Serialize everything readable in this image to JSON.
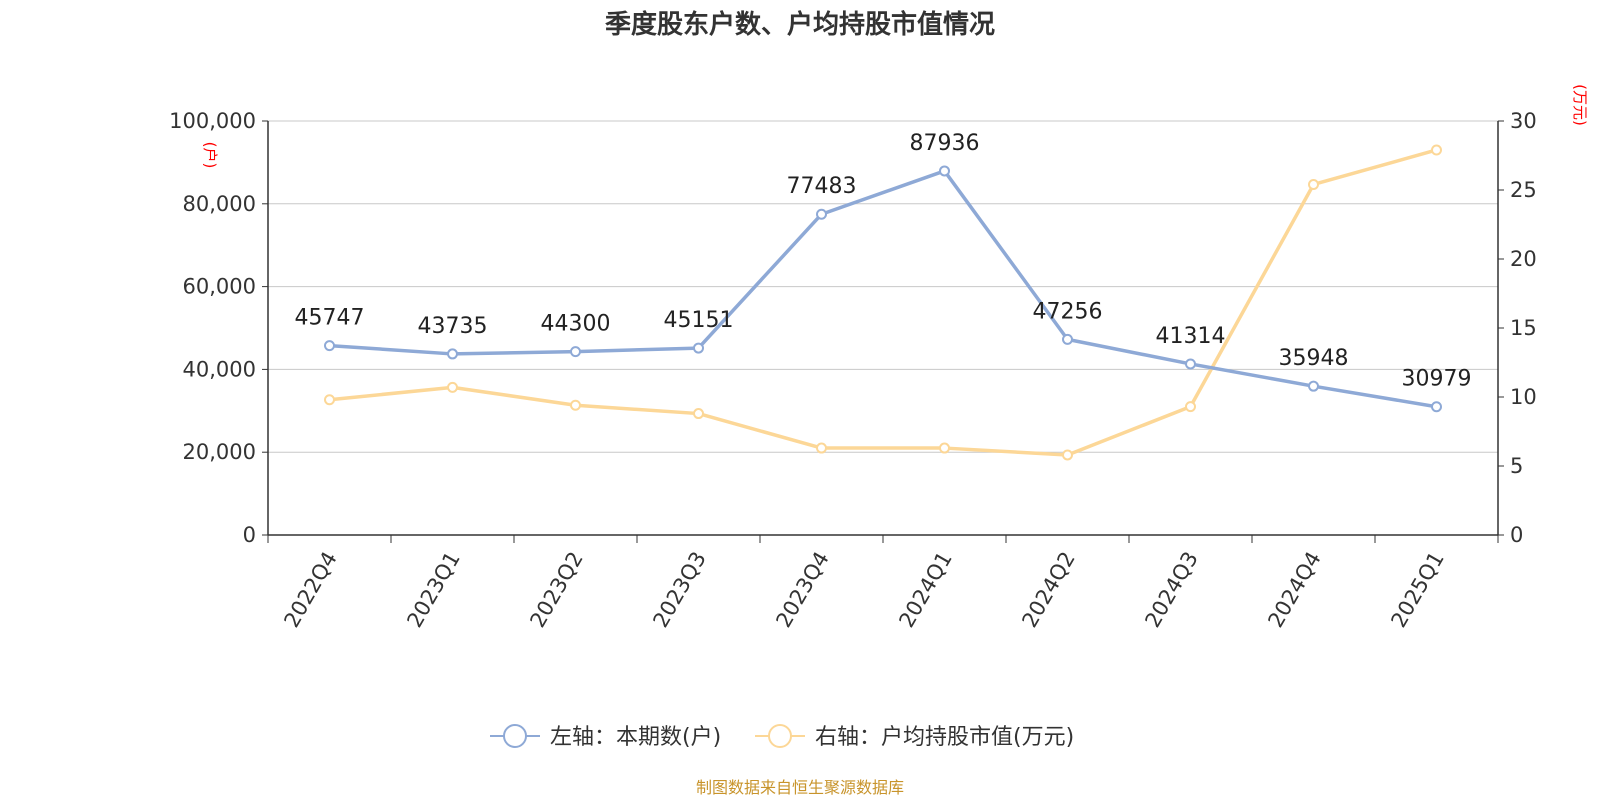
{
  "chart_data": {
    "type": "line",
    "title": "季度股东户数、户均持股市值情况",
    "categories": [
      "2022Q4",
      "2023Q1",
      "2023Q2",
      "2023Q3",
      "2023Q4",
      "2024Q1",
      "2024Q2",
      "2024Q3",
      "2024Q4",
      "2025Q1"
    ],
    "left_axis": {
      "unit": "(户)",
      "range": [
        0,
        100000
      ],
      "ticks": [
        "0",
        "20,000",
        "40,000",
        "60,000",
        "80,000",
        "100,000"
      ]
    },
    "right_axis": {
      "unit": "(万元)",
      "range": [
        0,
        30
      ],
      "ticks": [
        "0",
        "5",
        "10",
        "15",
        "20",
        "25",
        "30"
      ]
    },
    "series": [
      {
        "name": "左轴：本期数(户)",
        "axis": "left",
        "color": "#8ea9d6",
        "values": [
          45747,
          43735,
          44300,
          45151,
          77483,
          87936,
          47256,
          41314,
          35948,
          30979
        ],
        "labels": [
          "45747",
          "43735",
          "44300",
          "45151",
          "77483",
          "87936",
          "47256",
          "41314",
          "35948",
          "30979"
        ]
      },
      {
        "name": "右轴：户均持股市值(万元)",
        "axis": "right",
        "color": "#fcd797",
        "values": [
          9.8,
          10.7,
          9.4,
          8.8,
          6.3,
          6.3,
          5.8,
          9.3,
          25.4,
          27.9
        ]
      }
    ],
    "grid": true,
    "legend_position": "bottom-center",
    "source": "制图数据来自恒生聚源数据库"
  }
}
